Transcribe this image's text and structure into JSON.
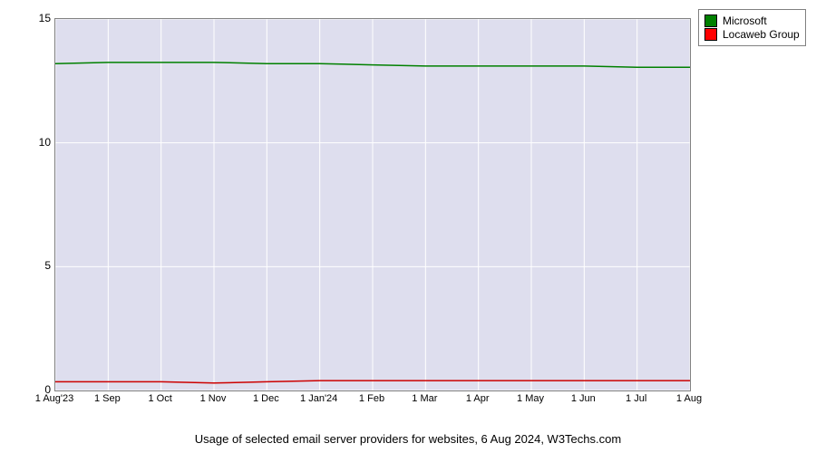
{
  "chart": {
    "type": "line",
    "caption": "Usage of selected email server providers for websites, 6 Aug 2024, W3Techs.com",
    "plot_background_color": "#dedeee",
    "page_background_color": "#ffffff",
    "border_color": "#808080",
    "grid_color": "#ffffff",
    "grid_width": 1,
    "ylim": [
      0,
      15
    ],
    "yticks": [
      0,
      5,
      10,
      15
    ],
    "x_labels": [
      "1 Aug'23",
      "1 Sep",
      "1 Oct",
      "1 Nov",
      "1 Dec",
      "1 Jan'24",
      "1 Feb",
      "1 Mar",
      "1 Apr",
      "1 May",
      "1 Jun",
      "1 Jul",
      "1 Aug"
    ],
    "x_count": 13,
    "series": [
      {
        "name": "Microsoft",
        "color": "#008000",
        "legend_swatch_fill": "#008000",
        "line_width": 1.5,
        "values": [
          13.2,
          13.25,
          13.25,
          13.25,
          13.2,
          13.2,
          13.15,
          13.1,
          13.1,
          13.1,
          13.1,
          13.05,
          13.05
        ]
      },
      {
        "name": "Locaweb Group",
        "color": "#cc0000",
        "legend_swatch_fill": "#ff0000",
        "line_width": 1.5,
        "values": [
          0.35,
          0.35,
          0.35,
          0.3,
          0.35,
          0.4,
          0.4,
          0.4,
          0.4,
          0.4,
          0.4,
          0.4,
          0.4
        ]
      }
    ],
    "label_fontsize": 12,
    "caption_fontsize": 13
  }
}
